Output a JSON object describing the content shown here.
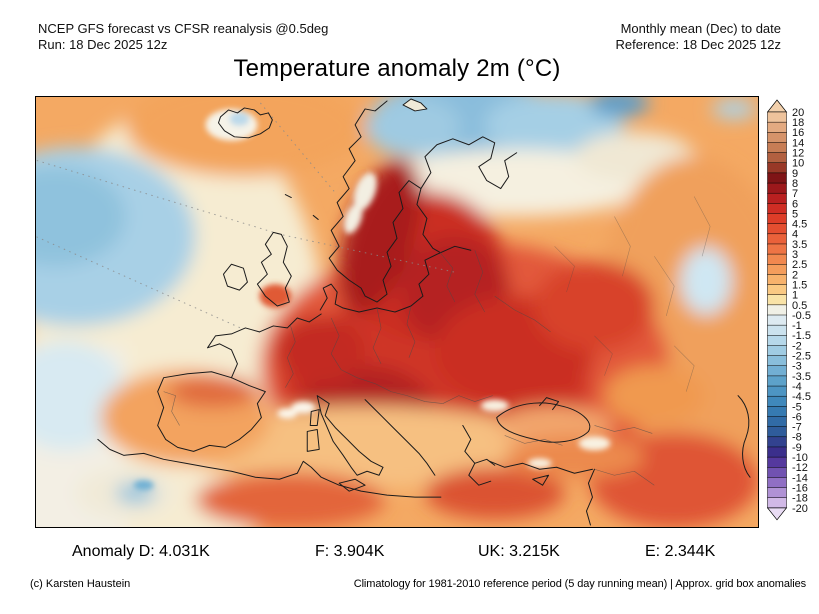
{
  "header": {
    "left_line1": "NCEP GFS forecast vs CFSR reanalysis @0.5deg",
    "left_line2": "Run: 18 Dec 2025 12z",
    "right_line1": "Monthly mean (Dec) to date",
    "right_line2": "Reference: 18 Dec 2025 12z"
  },
  "title": "Temperature anomaly 2m (°C)",
  "stats": {
    "items": [
      {
        "text": "Anomaly D: 4.031K"
      },
      {
        "text": "F: 3.904K"
      },
      {
        "text": "UK: 3.215K"
      },
      {
        "text": "E: 2.344K"
      }
    ]
  },
  "footer": {
    "credit": "(c) Karsten Haustein",
    "note": "Climatology for 1981-2010 reference period (5 day running mean) | Approx. grid box anomalies"
  },
  "colorbar": {
    "units": "°C",
    "levels": [
      "20",
      "18",
      "16",
      "14",
      "12",
      "10",
      "9",
      "8",
      "7",
      "6",
      "5",
      "4.5",
      "4",
      "3.5",
      "3",
      "2.5",
      "2",
      "1.5",
      "1",
      "0.5",
      "-0.5",
      "-1",
      "-1.5",
      "-2",
      "-2.5",
      "-3",
      "-3.5",
      "-4",
      "-4.5",
      "-5",
      "-6",
      "-7",
      "-8",
      "-9",
      "-10",
      "-12",
      "-14",
      "-16",
      "-18",
      "-20"
    ],
    "triangle_top": "#f2d0ac",
    "triangle_bottom": "#e9dcf4",
    "segment_colors": [
      "#eec39c",
      "#e3aa81",
      "#d5936a",
      "#c77d55",
      "#b26040",
      "#983827",
      "#7f1416",
      "#9c181b",
      "#b92020",
      "#cf2d24",
      "#dd3d28",
      "#e44e30",
      "#ea613a",
      "#ee7445",
      "#f1884f",
      "#f49d5c",
      "#f7b26c",
      "#fac983",
      "#f9e3a7",
      "#f0f0e6",
      "#ddeaf1",
      "#cbe2ee",
      "#b6d8ea",
      "#a0cce3",
      "#89bedb",
      "#72afd3",
      "#5da2ca",
      "#4d95c3",
      "#3f88bb",
      "#367ab1",
      "#316ba6",
      "#2f5c9b",
      "#32428f",
      "#3b2f8c",
      "#55399e",
      "#7152b1",
      "#906fc4",
      "#b092d5",
      "#d1b9e7"
    ]
  },
  "chart_data": {
    "type": "heatmap",
    "title": "Temperature anomaly 2m (°C)",
    "units": "°C",
    "colorbar_levels": [
      20,
      18,
      16,
      14,
      12,
      10,
      9,
      8,
      7,
      6,
      5,
      4.5,
      4,
      3.5,
      3,
      2.5,
      2,
      1.5,
      1,
      0.5,
      -0.5,
      -1,
      -1.5,
      -2,
      -2.5,
      -3,
      -3.5,
      -4,
      -4.5,
      -5,
      -6,
      -7,
      -8,
      -9,
      -10,
      -12,
      -14,
      -16,
      -18,
      -20
    ],
    "region_mean_anomalies_K": {
      "D": 4.031,
      "F": 3.904,
      "UK": 3.215,
      "E": 2.344
    },
    "notes": "Warm positive anomaly (3 to 9 °C) over most of Europe, strongest over Scandinavia, eastern and central Europe; weak negative anomalies over NW Atlantic, Arctic seas north of Russia and small spots near Morocco and the Urals."
  }
}
